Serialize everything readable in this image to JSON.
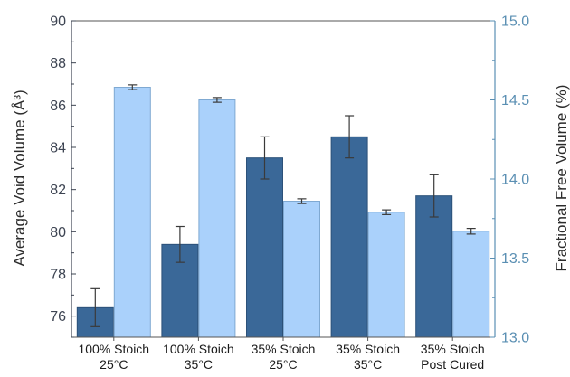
{
  "chart_data": {
    "type": "bar",
    "categories": [
      [
        "100% Stoich",
        "25°C"
      ],
      [
        "100% Stoich",
        "35°C"
      ],
      [
        "35% Stoich",
        "25°C"
      ],
      [
        "35% Stoich",
        "35°C"
      ],
      [
        "35% Stoich",
        "Post Cured"
      ]
    ],
    "series": [
      {
        "axis": "left",
        "color": "#3a6898",
        "values": [
          76.4,
          79.4,
          83.5,
          84.5,
          81.7
        ],
        "errors": [
          0.9,
          0.85,
          1.0,
          1.0,
          1.0
        ]
      },
      {
        "axis": "right",
        "color": "#aad1fb",
        "values": [
          14.58,
          14.5,
          13.86,
          13.79,
          13.67
        ],
        "errors": [
          0.015,
          0.015,
          0.015,
          0.015,
          0.018
        ]
      }
    ],
    "ylabel": "Average Void Volume (Å³)",
    "ylabel_right": "Fractional Free Volume (%)",
    "ylim": [
      75,
      90
    ],
    "ylim_right": [
      13.0,
      15.0
    ],
    "yticks": [
      "76",
      "78",
      "80",
      "82",
      "84",
      "86",
      "88",
      "90"
    ],
    "yticks_right": [
      "13.0",
      "13.5",
      "14.0",
      "14.5",
      "15.0"
    ],
    "colors": {
      "left_axis": "#3d4452",
      "right_axis": "#5a8fb3",
      "bar_dark": "#3a6898",
      "bar_light": "#aad1fb"
    }
  }
}
